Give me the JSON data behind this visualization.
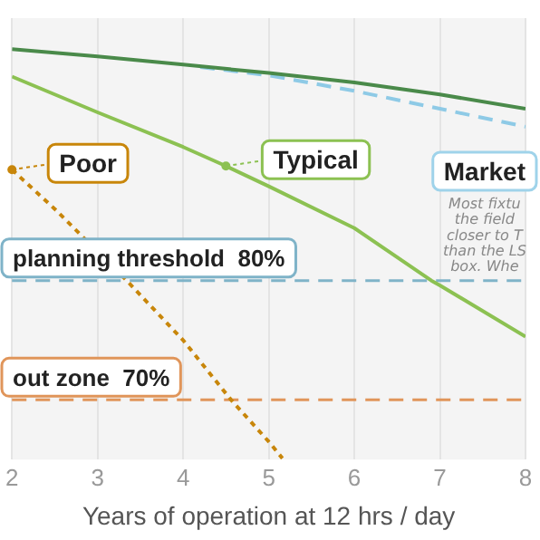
{
  "chart_data": {
    "type": "line",
    "xlabel": "Years of operation at 12 hrs / day",
    "xlim": [
      2,
      8
    ],
    "xticks": [
      2,
      3,
      4,
      5,
      6,
      7,
      8
    ],
    "ylim": [
      65,
      102
    ],
    "tick_labels": "x",
    "grid": "x",
    "marker": "none",
    "series": [
      {
        "color": "#4a8a4a",
        "line_style": "solid",
        "x": [
          2,
          3,
          4,
          5,
          6,
          7,
          8
        ],
        "values": [
          99.4,
          98.8,
          98.1,
          97.4,
          96.6,
          95.6,
          94.4
        ]
      },
      {
        "color": "#8ecae6",
        "line_style": "dashed",
        "x": [
          4.2,
          5,
          6,
          7,
          8
        ],
        "values": [
          97.9,
          97.2,
          95.9,
          94.4,
          92.9
        ]
      },
      {
        "color": "#8cc152",
        "line_style": "solid",
        "x": [
          2,
          3,
          4,
          4.5,
          5,
          6,
          6.9,
          7,
          8
        ],
        "values": [
          97.1,
          94.1,
          91.2,
          89.6,
          87.9,
          84.4,
          80,
          79.6,
          75.3
        ]
      },
      {
        "color": "#c8860a",
        "line_style": "dotted",
        "x": [
          2,
          2.5,
          3.34,
          4,
          4.56,
          5,
          5.16
        ],
        "values": [
          89.3,
          86,
          80,
          75,
          70,
          66.5,
          65.1
        ]
      }
    ],
    "ref_lines": [
      {
        "axis": "y",
        "value": 80,
        "label": "planning threshold  80%",
        "color": "#7fb3c8",
        "line_style": "dashed"
      },
      {
        "axis": "y",
        "value": 70,
        "label": "out zone  70%",
        "color": "#e0955a",
        "line_style": "dashed"
      }
    ],
    "annotations": [
      {
        "text": "Poor",
        "x": 2,
        "y": 89.3
      },
      {
        "text": "Typical",
        "x": 4.5,
        "y": 89.6
      },
      "Market",
      "Most fixtu\nthe field\ncloser to T\nthan the LS\nbox. Whe"
    ]
  }
}
